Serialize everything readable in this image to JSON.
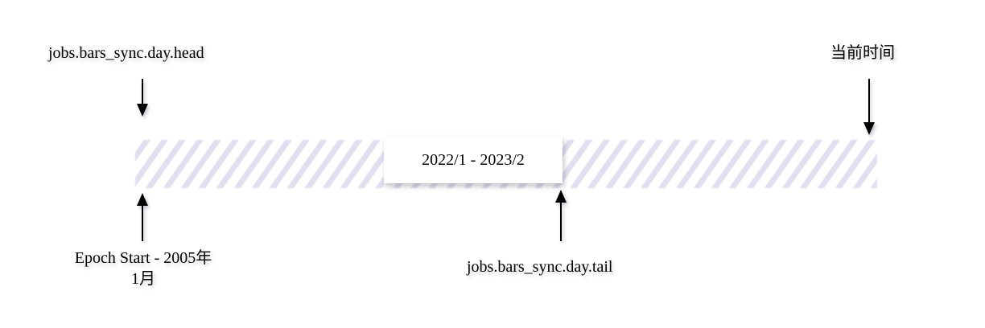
{
  "labels": {
    "head": "jobs.bars_sync.day.head",
    "now": "当前时间",
    "epoch_start": "Epoch Start - 2005年1月",
    "tail": "jobs.bars_sync.day.tail",
    "range": "2022/1 - 2023/2"
  },
  "colors": {
    "stripe": "#dadaec",
    "arrow": "#000000",
    "box_bg": "#ffffff"
  }
}
